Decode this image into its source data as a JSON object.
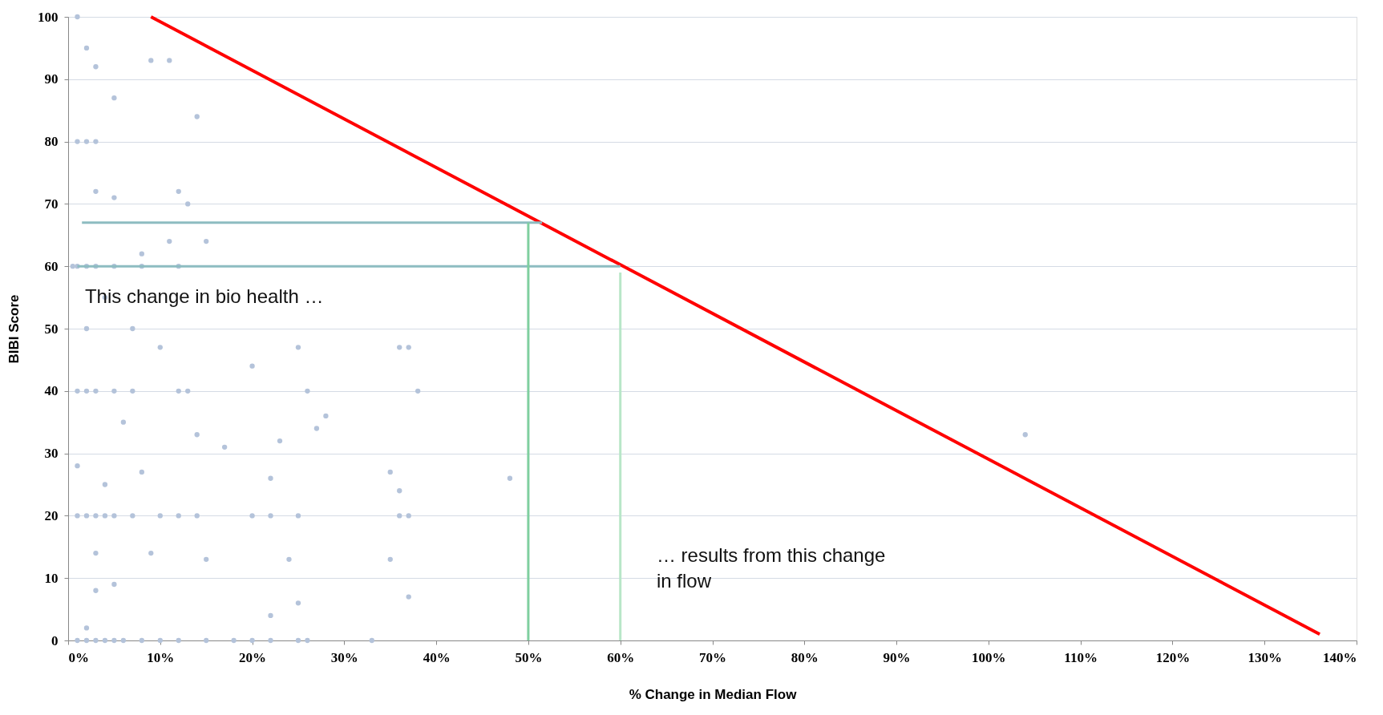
{
  "chart_data": {
    "type": "scatter",
    "xlabel": "% Change in Median Flow",
    "ylabel": "BIBI Score",
    "xlim": [
      0,
      140
    ],
    "ylim": [
      0,
      100
    ],
    "xticks": [
      {
        "value": 0,
        "label": "0%"
      },
      {
        "value": 10,
        "label": "10%"
      },
      {
        "value": 20,
        "label": "20%"
      },
      {
        "value": 30,
        "label": "30%"
      },
      {
        "value": 40,
        "label": "40%"
      },
      {
        "value": 50,
        "label": "50%"
      },
      {
        "value": 60,
        "label": "60%"
      },
      {
        "value": 70,
        "label": "70%"
      },
      {
        "value": 80,
        "label": "80%"
      },
      {
        "value": 90,
        "label": "90%"
      },
      {
        "value": 100,
        "label": "100%"
      },
      {
        "value": 110,
        "label": "110%"
      },
      {
        "value": 120,
        "label": "120%"
      },
      {
        "value": 130,
        "label": "130%"
      },
      {
        "value": 140,
        "label": "140%"
      }
    ],
    "yticks": [
      0,
      10,
      20,
      30,
      40,
      50,
      60,
      70,
      80,
      90,
      100
    ],
    "grid": "y",
    "series": [
      {
        "marker": "circle",
        "color": "#b4c3da",
        "x": [
          1,
          2,
          3,
          4,
          5,
          6,
          8,
          10,
          12,
          15,
          18,
          20,
          22,
          25,
          26,
          33,
          1,
          2,
          3,
          4,
          5,
          7,
          10,
          12,
          14,
          20,
          22,
          25,
          36,
          37,
          1,
          2,
          3,
          5,
          7,
          12,
          13,
          26,
          38,
          0.5,
          1,
          2,
          3,
          5,
          8,
          12,
          1,
          2,
          3,
          1,
          2,
          3,
          9,
          11,
          5,
          14,
          3,
          5,
          12,
          13,
          11,
          15,
          8,
          4,
          2,
          7,
          10,
          25,
          20,
          36,
          37,
          6,
          14,
          17,
          23,
          27,
          28,
          1,
          4,
          8,
          22,
          35,
          36,
          3,
          9,
          15,
          24,
          35,
          3,
          5,
          22,
          25,
          37,
          2,
          104,
          48
        ],
        "values": [
          0,
          0,
          0,
          0,
          0,
          0,
          0,
          0,
          0,
          0,
          0,
          0,
          0,
          0,
          0,
          0,
          20,
          20,
          20,
          20,
          20,
          20,
          20,
          20,
          20,
          20,
          20,
          20,
          20,
          20,
          40,
          40,
          40,
          40,
          40,
          40,
          40,
          40,
          40,
          60,
          60,
          60,
          60,
          60,
          60,
          60,
          80,
          80,
          80,
          100,
          95,
          92,
          93,
          93,
          87,
          84,
          72,
          71,
          72,
          70,
          64,
          64,
          62,
          55,
          50,
          50,
          47,
          47,
          44,
          47,
          47,
          35,
          33,
          31,
          32,
          34,
          36,
          28,
          25,
          27,
          26,
          27,
          24,
          14,
          14,
          13,
          13,
          13,
          8,
          9,
          4,
          6,
          7,
          2,
          33,
          26
        ]
      },
      {
        "type": "line",
        "color": "#ff0000",
        "x": [
          9,
          136
        ],
        "values": [
          100,
          1
        ]
      },
      {
        "type": "line",
        "color": "#8dbcc1",
        "x": [
          1.5,
          51.5
        ],
        "values": [
          67,
          67
        ]
      },
      {
        "type": "line",
        "color": "#8dbcc1",
        "x": [
          1,
          60
        ],
        "values": [
          60,
          60
        ]
      },
      {
        "type": "line",
        "color": "#7fcf9f",
        "x": [
          50,
          50
        ],
        "values": [
          0,
          67
        ]
      },
      {
        "type": "line",
        "color": "#b8e6c8",
        "x": [
          60,
          60
        ],
        "values": [
          0,
          59
        ]
      }
    ],
    "annotations": [
      "This change in bio health …",
      "… results from this change\nin flow"
    ]
  }
}
